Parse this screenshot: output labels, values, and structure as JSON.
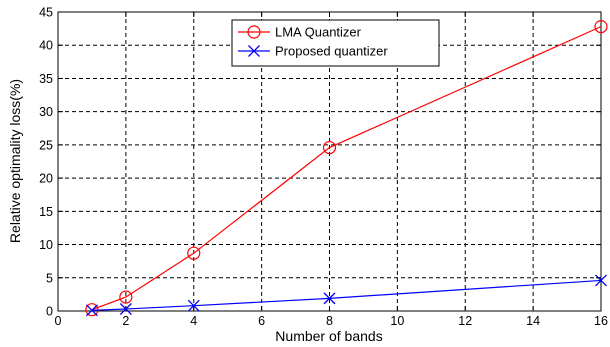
{
  "chart_data": {
    "type": "line",
    "xlabel": "Number of bands",
    "ylabel": "Relative optimality loss(%)",
    "xlim": [
      0,
      16
    ],
    "ylim": [
      0,
      45
    ],
    "xticks": [
      0,
      2,
      4,
      6,
      8,
      10,
      12,
      14,
      16
    ],
    "yticks": [
      0,
      5,
      10,
      15,
      20,
      25,
      30,
      35,
      40,
      45
    ],
    "grid": true,
    "legend_position": "top-center",
    "series": [
      {
        "name": "LMA Quantizer",
        "color": "#ff0000",
        "marker": "circle",
        "x": [
          1,
          2,
          4,
          8,
          16
        ],
        "y": [
          0.2,
          2.1,
          8.7,
          24.6,
          42.8
        ]
      },
      {
        "name": "Proposed quantizer",
        "color": "#0000ff",
        "marker": "x",
        "x": [
          1,
          2,
          4,
          8,
          16
        ],
        "y": [
          0.1,
          0.3,
          0.8,
          1.9,
          4.6
        ]
      }
    ]
  }
}
